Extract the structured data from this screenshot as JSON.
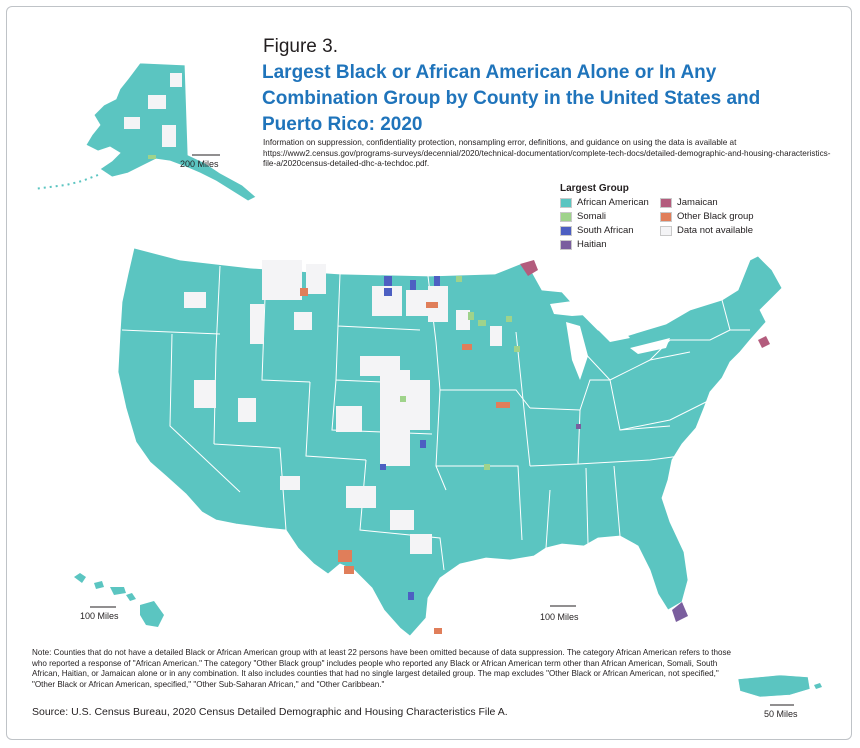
{
  "figure_label": "Figure 3.",
  "title": "Largest Black or African American Alone or In Any Combination Group by County in the United States and Puerto Rico: 2020",
  "info_text": "Information on suppression, confidentiality protection, nonsampling error, definitions, and guidance on using the data is available at https://www2.census.gov/programs-surveys/decennial/2020/technical-documentation/complete-tech-docs/detailed-demographic-and-housing-characteristics-file-a/2020census-detailed-dhc-a-techdoc.pdf.",
  "legend": {
    "title": "Largest Group",
    "items": [
      {
        "label": "African American",
        "color": "#5bc5c1"
      },
      {
        "label": "Jamaican",
        "color": "#b35c7d"
      },
      {
        "label": "Somali",
        "color": "#9fd38b"
      },
      {
        "label": "Other Black group",
        "color": "#e07e5a"
      },
      {
        "label": "South African",
        "color": "#4d5fc2"
      },
      {
        "label": "Data not available",
        "color": "#f4f4f6"
      },
      {
        "label": "Haitian",
        "color": "#7a5e9e"
      }
    ]
  },
  "scales": {
    "alaska": "200 Miles",
    "hawaii": "100 Miles",
    "conus": "100 Miles",
    "puerto_rico": "50 Miles"
  },
  "note": "Note: Counties that do not have a detailed Black or African American group with at least 22 persons have been omitted because of data suppression. The category African American refers to those who reported a response of \"African American.\" The category \"Other Black group\" includes people who reported any Black or African American term other than African American, Somali, South African, Haitian, or Jamaican alone or in any combination. It also includes counties that had no single largest detailed group. The map excludes \"Other Black or African American, not specified,\" \"Other Black or African American, specified,\" \"Other Sub-Saharan African,\" and \"Other Caribbean.\"",
  "source": "Source: U.S. Census Bureau, 2020 Census Detailed Demographic and Housing Characteristics File A.",
  "colors": {
    "title": "#1f74bb",
    "land": "#5bc5c1",
    "state_border": "#ffffff",
    "no_data": "#f4f4f6"
  }
}
